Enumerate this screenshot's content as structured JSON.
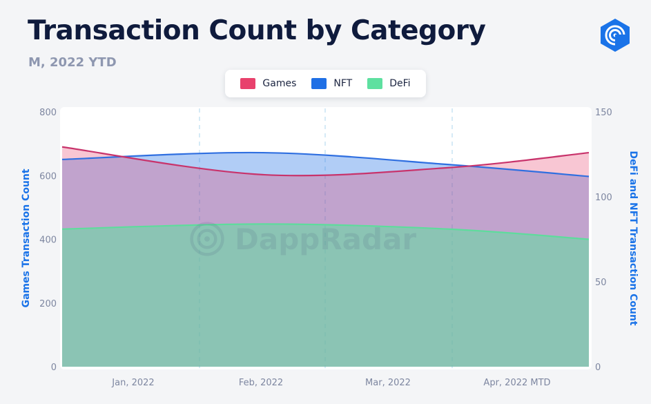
{
  "header": {
    "title": "Transaction Count by Category",
    "subtitle": "M, 2022 YTD"
  },
  "branding": {
    "logo_icon": "dappradar-logo-icon",
    "watermark_text": "DappRadar",
    "accent_color": "#1a73e8"
  },
  "chart_data": {
    "type": "area",
    "categories": [
      "Jan, 2022",
      "Feb, 2022",
      "Mar, 2022",
      "Apr, 2022 MTD"
    ],
    "series": [
      {
        "name": "Games",
        "axis": "left",
        "color": "#e8416c",
        "values": [
          690,
          603,
          625,
          672
        ]
      },
      {
        "name": "NFT",
        "axis": "right",
        "color": "#1f6fe5",
        "values": [
          122,
          126,
          119,
          112
        ]
      },
      {
        "name": "DeFi",
        "axis": "right",
        "color": "#5ee0a0",
        "values": [
          81,
          84,
          81,
          75
        ]
      }
    ],
    "ylabel_left": "Games Transaction Count",
    "ylabel_right": "DeFi and NFT Transaction Count",
    "ylim_left": [
      0,
      800
    ],
    "ylim_right": [
      0,
      150
    ],
    "yticks_left": [
      "0",
      "200",
      "400",
      "600",
      "800"
    ],
    "yticks_right": [
      "0",
      "50",
      "100",
      "150"
    ],
    "legend_position": "top-center",
    "grid": "vertical-dashed"
  }
}
